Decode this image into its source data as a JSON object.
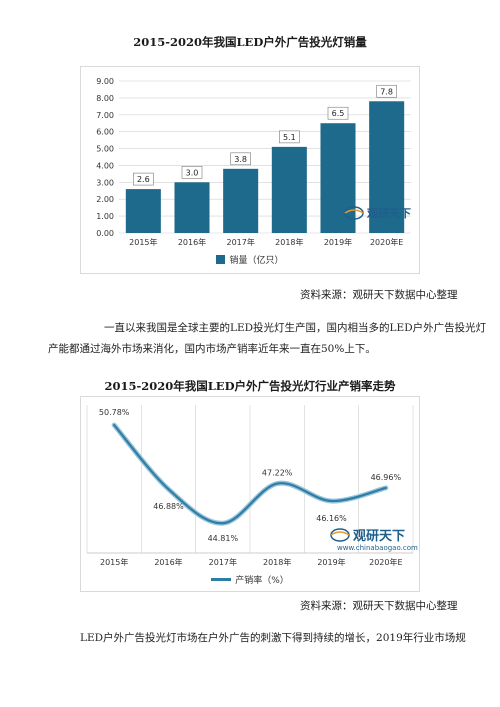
{
  "chart1_title": "2015-2020年我国LED户外广告投光灯销量",
  "chart2_title": "2015-2020年我国LED户外广告投光灯行业产销率走势",
  "source_1": "资料来源：观研天下数据中心整理",
  "source_2": "资料来源：观研天下数据中心整理",
  "paragraph_1_line_1": "一直以来我国是全球主要的LED投光灯生产国，国内相当多的LED户外广告投光灯",
  "paragraph_1_line_2": "产能都通过海外市场来消化，国内市场产销率近年来一直在50%上下。",
  "paragraph_2_line_1": "LED户外广告投光灯市场在户外广告的刺激下得到持续的增长，2019年行业市场规",
  "watermark": {
    "name": "观研天下",
    "url": "www.chinabaogao.com"
  },
  "colors": {
    "bar": "#1e6a8c",
    "line": "#2c7ea6",
    "grid": "#d0d0d0",
    "axis_text": "#333333"
  },
  "chart_data": [
    {
      "type": "bar",
      "title": "2015-2020年我国LED户外广告投光灯销量",
      "categories": [
        "2015年",
        "2016年",
        "2017年",
        "2018年",
        "2019年",
        "2020年E"
      ],
      "series": [
        {
          "name": "销量（亿只）",
          "values": [
            2.6,
            3.0,
            3.8,
            5.1,
            6.5,
            7.8
          ]
        }
      ],
      "value_labels": [
        "2.6",
        "3.0",
        "3.8",
        "5.1",
        "6.5",
        "7.8"
      ],
      "yticks": [
        "0.00",
        "1.00",
        "2.00",
        "3.00",
        "4.00",
        "5.00",
        "6.00",
        "7.00",
        "8.00",
        "9.00"
      ],
      "ylim": [
        0,
        9
      ],
      "grid": true,
      "legend": "bottom"
    },
    {
      "type": "line",
      "title": "2015-2020年我国LED户外广告投光灯行业产销率走势",
      "categories": [
        "2015年",
        "2016年",
        "2017年",
        "2018年",
        "2019年",
        "2020年E"
      ],
      "series": [
        {
          "name": "产销率（%）",
          "values": [
            50.78,
            46.88,
            44.81,
            47.22,
            46.16,
            46.96
          ]
        }
      ],
      "value_labels": [
        "50.78%",
        "46.88%",
        "44.81%",
        "47.22%",
        "46.16%",
        "46.96%"
      ],
      "ylim": [
        43,
        52
      ],
      "grid": true,
      "legend": "bottom"
    }
  ]
}
